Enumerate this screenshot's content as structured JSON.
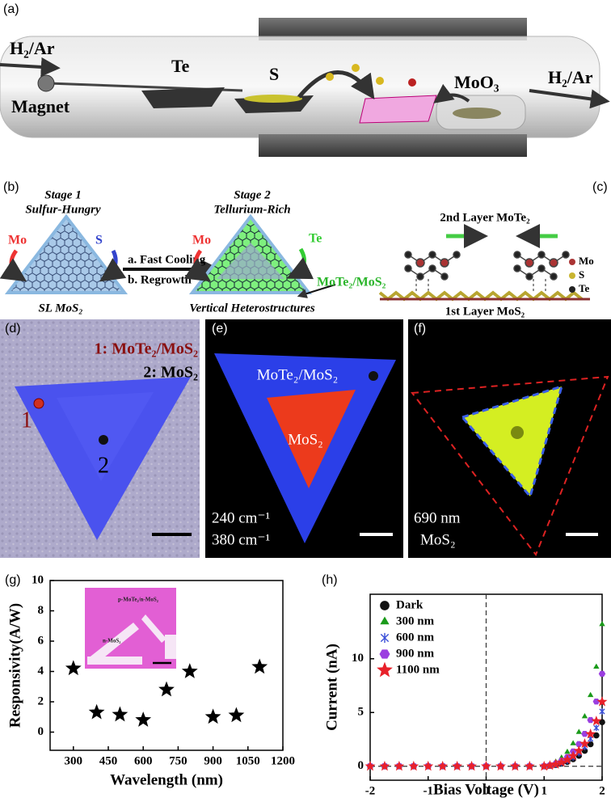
{
  "panel_a": {
    "label": "(a)",
    "gas_in": "H₂/Ar",
    "magnet": "Magnet",
    "te": "Te",
    "s": "S",
    "moo3": "MoO₃",
    "gas_out": "H₂/Ar"
  },
  "panel_b": {
    "label": "(b)",
    "stage1": "Stage 1",
    "stage1_sub": "Sulfur-Hungry",
    "mo1": "Mo",
    "s": "S",
    "sl": "SL MoS₂",
    "step_a": "a. Fast Cooling",
    "step_b": "b. Regrowth",
    "stage2": "Stage 2",
    "stage2_sub": "Tellurium-Rich",
    "mo2": "Mo",
    "te": "Te",
    "hetero": "MoTe₂/MoS₂",
    "vertical": "Vertical Heterostructures"
  },
  "panel_c": {
    "label": "(c)",
    "top": "2nd Layer MoTe₂",
    "bottom": "1st Layer MoS₂",
    "legend": [
      "Mo",
      "S",
      "Te"
    ]
  },
  "panel_d": {
    "label": "(d)",
    "key1": "1: MoTe₂/MoS₂",
    "key2": "2: MoS₂",
    "point1": "1",
    "point2": "2"
  },
  "panel_e": {
    "label": "(e)",
    "outer": "MoTe₂/MoS₂",
    "inner": "MoS₂",
    "wn1": "240 cm⁻¹",
    "wn2": "380 cm⁻¹"
  },
  "panel_f": {
    "label": "(f)",
    "wavelength": "690 nm",
    "material": "MoS₂"
  },
  "panel_g": {
    "label": "(g)",
    "inset_top": "p-MoTe₂/n-MoS₂",
    "inset_bottom": "n-MoS₂"
  },
  "panel_h": {
    "label": "(h)"
  },
  "chart_data": [
    {
      "type": "scatter",
      "xlabel": "Wavelength (nm)",
      "ylabel": "Responsivity(A/W)",
      "x": [
        300,
        400,
        500,
        600,
        700,
        800,
        900,
        1000,
        1100
      ],
      "values": [
        4.2,
        1.3,
        1.15,
        0.8,
        2.8,
        4.0,
        1.0,
        1.1,
        4.3
      ],
      "color": "#000000",
      "marker": "star",
      "xlim": [
        200,
        1200
      ],
      "xticks": [
        300,
        450,
        600,
        750,
        900,
        1050,
        1200
      ],
      "ylim": [
        -1.2,
        10
      ],
      "yticks": [
        0,
        2,
        4,
        6,
        8,
        10
      ]
    },
    {
      "type": "scatter",
      "xlabel": "Bias Voltage (V)",
      "ylabel": "Current (nA)",
      "x": [
        -2,
        -1.75,
        -1.5,
        -1.25,
        -1,
        -0.75,
        -0.5,
        -0.25,
        0,
        0.25,
        0.5,
        0.75,
        1,
        1.1,
        1.2,
        1.3,
        1.4,
        1.5,
        1.6,
        1.7,
        1.8,
        1.9,
        2
      ],
      "series": [
        {
          "name": "Dark",
          "color": "#111111",
          "marker": "circle",
          "values": [
            0,
            0,
            0,
            0,
            0,
            0,
            0,
            0,
            0,
            0,
            0,
            0,
            0,
            0.04,
            0.12,
            0.25,
            0.41,
            0.66,
            0.98,
            1.44,
            2.05,
            2.87,
            4.1
          ]
        },
        {
          "name": "300 nm",
          "color": "#1a9a1a",
          "marker": "triangle",
          "values": [
            0,
            0,
            0,
            0,
            0,
            0,
            0,
            0,
            0,
            0,
            0,
            0,
            0,
            0.13,
            0.4,
            0.79,
            1.32,
            2.11,
            3.17,
            4.62,
            6.6,
            9.24,
            13.2
          ]
        },
        {
          "name": "600 nm",
          "color": "#3a4fd8",
          "marker": "x",
          "values": [
            0,
            0,
            0,
            0,
            0,
            0,
            0,
            0,
            0,
            0,
            0,
            0,
            0,
            0.05,
            0.15,
            0.31,
            0.51,
            0.82,
            1.22,
            1.79,
            2.55,
            3.57,
            5.1
          ]
        },
        {
          "name": "900 nm",
          "color": "#9b3fe0",
          "marker": "hexagon",
          "values": [
            0,
            0,
            0,
            0,
            0,
            0,
            0,
            0,
            0,
            0,
            0,
            0,
            0,
            0.09,
            0.26,
            0.52,
            0.86,
            1.38,
            2.06,
            3.01,
            4.3,
            6.02,
            8.6
          ]
        },
        {
          "name": "1100 nm",
          "color": "#e8212a",
          "marker": "star",
          "values": [
            0,
            0,
            0,
            0,
            0,
            0,
            0,
            0,
            0,
            0,
            0,
            0,
            0,
            0.06,
            0.18,
            0.36,
            0.6,
            0.96,
            1.44,
            2.1,
            3.0,
            4.2,
            6.0
          ]
        }
      ],
      "xlim": [
        -2,
        2
      ],
      "xticks": [
        -2,
        -1,
        0,
        1,
        2
      ],
      "ylim": [
        -1.3,
        16
      ],
      "yticks": [
        0,
        5,
        10
      ],
      "legend": "upper left",
      "zero_lines": true
    }
  ]
}
